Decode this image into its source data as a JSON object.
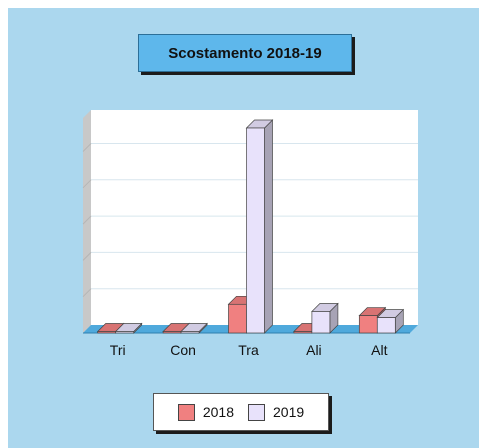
{
  "chart_data": {
    "type": "bar",
    "title": "Scostamento 2018-19",
    "categories": [
      "Tri",
      "Con",
      "Tra",
      "Ali",
      "Alt"
    ],
    "series": [
      {
        "name": "2018",
        "values": [
          0.5,
          0.5,
          14,
          0.5,
          8.5
        ],
        "color": "#f08080"
      },
      {
        "name": "2019",
        "values": [
          0.5,
          0.5,
          100,
          10.5,
          7.5
        ],
        "color": "#e8e2fb"
      }
    ],
    "ylim": [
      0,
      100
    ],
    "grid": true,
    "legend": "bottom"
  }
}
